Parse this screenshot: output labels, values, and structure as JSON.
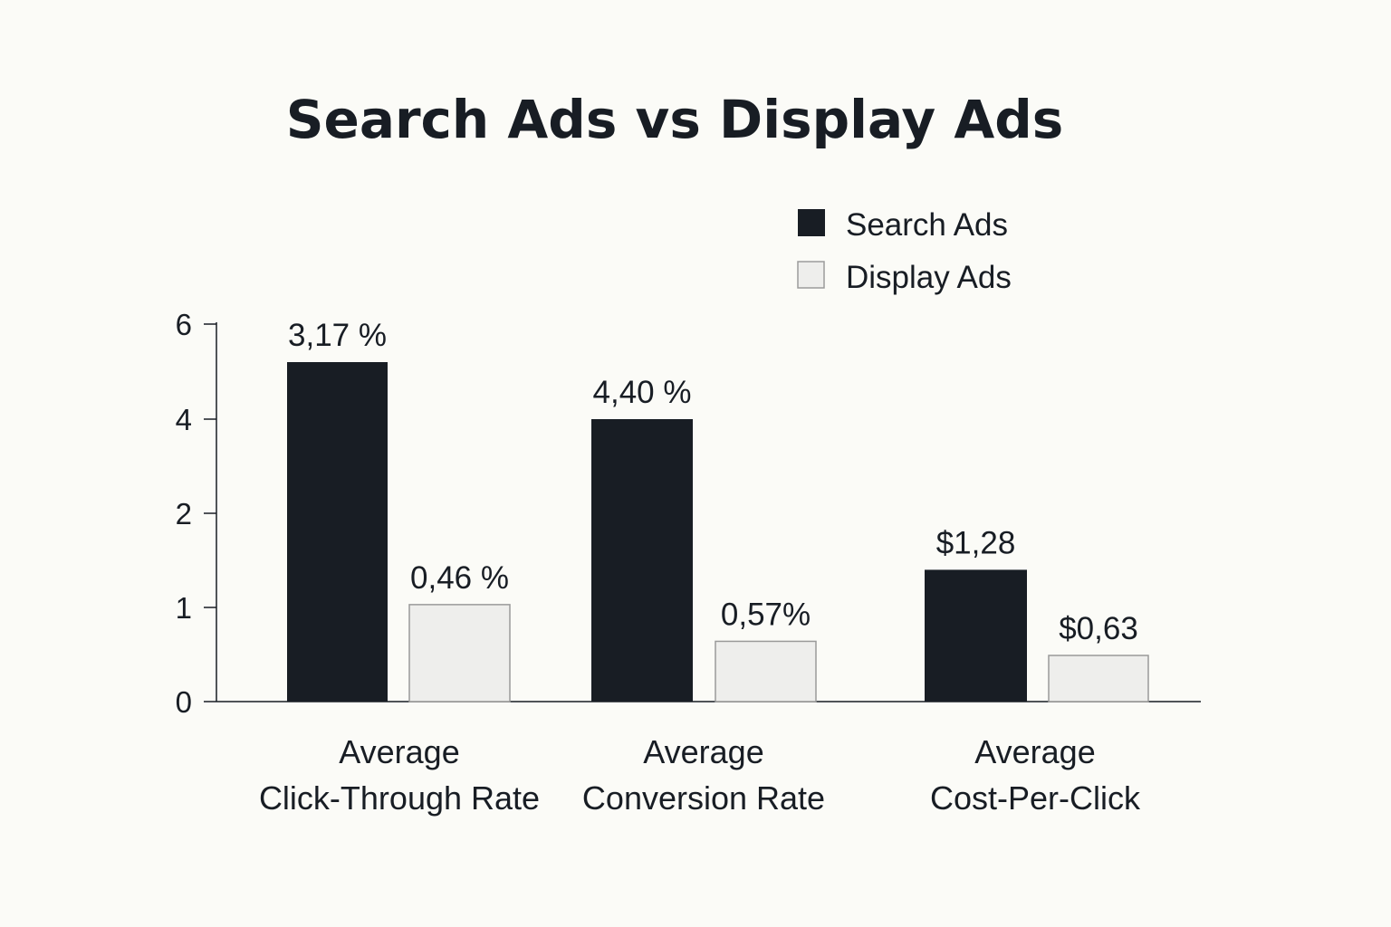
{
  "chart_data": {
    "type": "bar",
    "title": "Search Ads vs Display Ads",
    "categories": [
      [
        "Average",
        "Click-Through Rate"
      ],
      [
        "Average",
        "Conversion Rate"
      ],
      [
        "Average",
        "Cost-Per-Click"
      ]
    ],
    "yticks": [
      {
        "label": "0",
        "value": 0
      },
      {
        "label": "1",
        "value": 1
      },
      {
        "label": "2",
        "value": 2
      },
      {
        "label": "4",
        "value": 4
      },
      {
        "label": "6",
        "value": 6
      }
    ],
    "series": [
      {
        "name": "Search Ads",
        "values": [
          3.17,
          4.4,
          1.28
        ],
        "value_labels": [
          "3,17 %",
          "4,40 %",
          "$1,28"
        ],
        "color": "#181d24"
      },
      {
        "name": "Display Ads",
        "values": [
          0.46,
          0.57,
          0.63
        ],
        "value_labels": [
          "0,46 %",
          "0,57%",
          "$0,63"
        ],
        "color": "#eeeeec"
      }
    ],
    "legend": "top-right",
    "grid": false
  }
}
